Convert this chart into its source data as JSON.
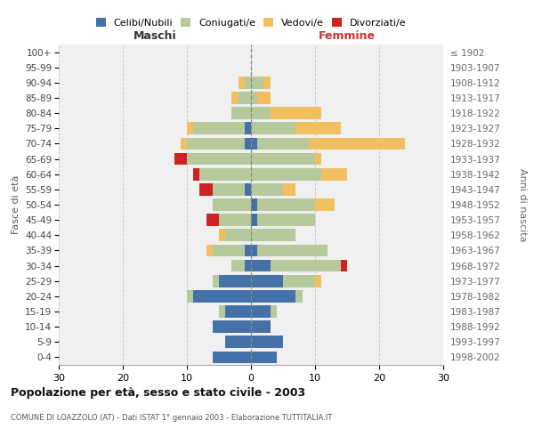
{
  "age_groups": [
    "0-4",
    "5-9",
    "10-14",
    "15-19",
    "20-24",
    "25-29",
    "30-34",
    "35-39",
    "40-44",
    "45-49",
    "50-54",
    "55-59",
    "60-64",
    "65-69",
    "70-74",
    "75-79",
    "80-84",
    "85-89",
    "90-94",
    "95-99",
    "100+"
  ],
  "birth_years": [
    "1998-2002",
    "1993-1997",
    "1988-1992",
    "1983-1987",
    "1978-1982",
    "1973-1977",
    "1968-1972",
    "1963-1967",
    "1958-1962",
    "1953-1957",
    "1948-1952",
    "1943-1947",
    "1938-1942",
    "1933-1937",
    "1928-1932",
    "1923-1927",
    "1918-1922",
    "1913-1917",
    "1908-1912",
    "1903-1907",
    "≤ 1902"
  ],
  "maschi": {
    "celibi": [
      6,
      4,
      6,
      4,
      9,
      5,
      1,
      1,
      0,
      0,
      0,
      1,
      0,
      0,
      1,
      1,
      0,
      0,
      0,
      0,
      0
    ],
    "coniugati": [
      0,
      0,
      0,
      1,
      1,
      1,
      2,
      5,
      4,
      5,
      6,
      5,
      8,
      10,
      9,
      8,
      3,
      2,
      1,
      0,
      0
    ],
    "vedovi": [
      0,
      0,
      0,
      0,
      0,
      0,
      0,
      1,
      1,
      0,
      0,
      0,
      0,
      0,
      1,
      1,
      0,
      1,
      1,
      0,
      0
    ],
    "divorziati": [
      0,
      0,
      0,
      0,
      0,
      0,
      0,
      0,
      0,
      2,
      0,
      2,
      1,
      2,
      0,
      0,
      0,
      0,
      0,
      0,
      0
    ]
  },
  "femmine": {
    "nubili": [
      4,
      5,
      3,
      3,
      7,
      5,
      3,
      1,
      0,
      1,
      1,
      0,
      0,
      0,
      1,
      0,
      0,
      0,
      0,
      0,
      0
    ],
    "coniugate": [
      0,
      0,
      0,
      1,
      1,
      5,
      11,
      11,
      7,
      9,
      9,
      5,
      11,
      10,
      8,
      7,
      3,
      1,
      2,
      0,
      0
    ],
    "vedove": [
      0,
      0,
      0,
      0,
      0,
      1,
      0,
      0,
      0,
      0,
      3,
      2,
      4,
      1,
      15,
      7,
      8,
      2,
      1,
      0,
      0
    ],
    "divorziate": [
      0,
      0,
      0,
      0,
      0,
      0,
      1,
      0,
      0,
      0,
      0,
      0,
      0,
      0,
      0,
      0,
      0,
      0,
      0,
      0,
      0
    ]
  },
  "colors": {
    "celibi": "#4472a8",
    "coniugati": "#b5c99a",
    "vedovi": "#f0c060",
    "divorziati": "#cc2222"
  },
  "title": "Popolazione per età, sesso e stato civile - 2003",
  "subtitle": "COMUNE DI LOAZZOLO (AT) - Dati ISTAT 1° gennaio 2003 - Elaborazione TUTTITALIA.IT",
  "ylabel_left": "Fasce di età",
  "ylabel_right": "Anni di nascita",
  "xlabel_left": "Maschi",
  "xlabel_right": "Femmine",
  "xlim": 30,
  "legend_labels": [
    "Celibi/Nubili",
    "Coniugati/e",
    "Vedovi/e",
    "Divorziati/e"
  ],
  "bg_color": "#ffffff",
  "plot_bg_color": "#f0f0f0",
  "grid_color": "#cccccc"
}
